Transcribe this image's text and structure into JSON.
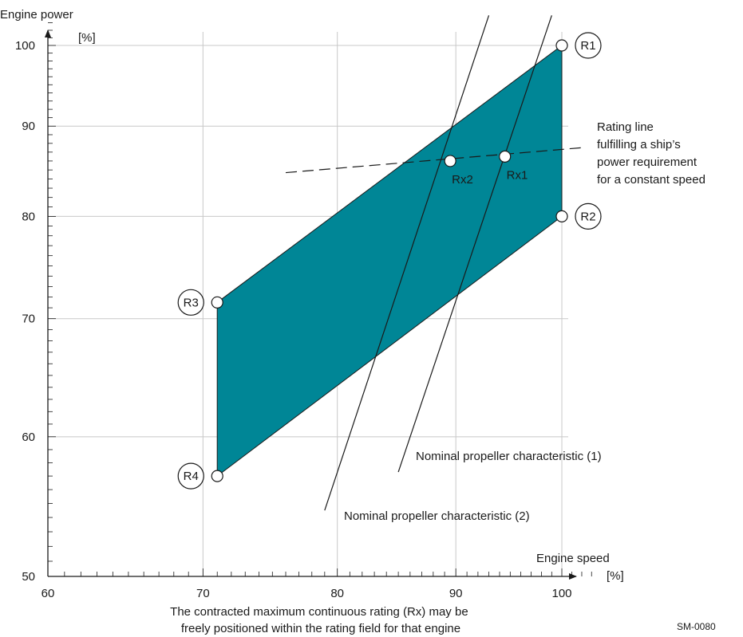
{
  "chart_data": {
    "type": "area",
    "title": "",
    "xlabel": "Engine speed",
    "xunit": "[%]",
    "ylabel": "Engine power",
    "yunit": "[%]",
    "x_scale": "log",
    "y_scale": "log",
    "xlim": [
      60,
      104
    ],
    "ylim": [
      50,
      104
    ],
    "x_ticks": [
      60,
      70,
      80,
      90,
      100
    ],
    "y_ticks": [
      50,
      60,
      70,
      80,
      90,
      100
    ],
    "grid": true,
    "field_color": "#008696",
    "rating_field": [
      {
        "name": "R1",
        "x": 100,
        "y": 100
      },
      {
        "name": "R2",
        "x": 100,
        "y": 80
      },
      {
        "name": "R4",
        "x": 71,
        "y": 57
      },
      {
        "name": "R3",
        "x": 71,
        "y": 71.5
      }
    ],
    "points": [
      {
        "name": "Rx1",
        "x": 94.5,
        "y": 86.5
      },
      {
        "name": "Rx2",
        "x": 89.5,
        "y": 86
      }
    ],
    "propeller_lines": [
      {
        "label": "Nominal propeller characteristic (1)",
        "from": [
          85,
          57.3
        ],
        "to": [
          99,
          104
        ]
      },
      {
        "label": "Nominal propeller characteristic (2)",
        "from": [
          79,
          54.5
        ],
        "to": [
          93,
          104
        ]
      }
    ],
    "rating_line": {
      "label_lines": [
        "Rating line",
        "fulfilling a ship’s",
        "power requirement",
        "for a constant speed"
      ],
      "from": [
        76,
        84.7
      ],
      "to": [
        102,
        87.5
      ]
    },
    "caption_lines": [
      "The contracted maximum continuous rating (Rx) may be",
      "freely positioned within the rating field for that engine"
    ],
    "code": "SM-0080"
  }
}
